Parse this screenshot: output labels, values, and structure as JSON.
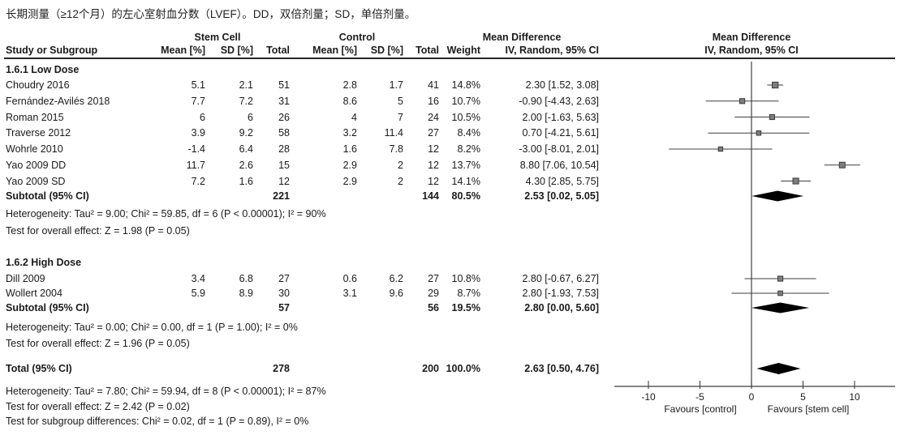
{
  "title": "长期测量（≥12个月）的左心室射血分数（LVEF）。DD，双倍剂量；SD，单倍剂量。",
  "header": {
    "stem_cell": "Stem Cell",
    "control": "Control",
    "mean_difference": "Mean Difference",
    "study": "Study or Subgroup",
    "mean": "Mean [%]",
    "sd": "SD [%]",
    "total": "Total",
    "weight": "Weight",
    "ci": "IV, Random, 95% CI",
    "plot_line1": "Mean Difference",
    "plot_line2": "IV, Random, 95% CI"
  },
  "colors": {
    "text": "#1a1a1a",
    "line": "#3f3f3f",
    "square_fill": "#7d7d7d",
    "square_stroke": "#3c3c3c",
    "diamond": "#000000"
  },
  "chart_data": {
    "type": "forest",
    "effect_measure": "Mean Difference",
    "model": "IV, Random, 95% CI",
    "x_ticks": [
      -10,
      -5,
      0,
      5,
      10
    ],
    "xlim": [
      -13,
      14
    ],
    "favours_left": "Favours [control]",
    "favours_right": "Favours [stem cell]",
    "groups": [
      {
        "label": "1.6.1 Low Dose",
        "studies": [
          {
            "name": "Choudry 2016",
            "sc_mean": 5.1,
            "sc_sd": 2.1,
            "sc_total": 51,
            "ct_mean": 2.8,
            "ct_sd": 1.7,
            "ct_total": 41,
            "weight": 14.8,
            "md": 2.3,
            "lo": 1.52,
            "hi": 3.08
          },
          {
            "name": "Fernández-Avilés 2018",
            "sc_mean": 7.7,
            "sc_sd": 7.2,
            "sc_total": 31,
            "ct_mean": 8.6,
            "ct_sd": 5,
            "ct_total": 16,
            "weight": 10.7,
            "md": -0.9,
            "lo": -4.43,
            "hi": 2.63
          },
          {
            "name": "Roman 2015",
            "sc_mean": 6,
            "sc_sd": 6,
            "sc_total": 26,
            "ct_mean": 4,
            "ct_sd": 7,
            "ct_total": 24,
            "weight": 10.5,
            "md": 2,
            "lo": -1.63,
            "hi": 5.63
          },
          {
            "name": "Traverse 2012",
            "sc_mean": 3.9,
            "sc_sd": 9.2,
            "sc_total": 58,
            "ct_mean": 3.2,
            "ct_sd": 11.4,
            "ct_total": 27,
            "weight": 8.4,
            "md": 0.7,
            "lo": -4.21,
            "hi": 5.61
          },
          {
            "name": "Wohrle 2010",
            "sc_mean": -1.4,
            "sc_sd": 6.4,
            "sc_total": 28,
            "ct_mean": 1.6,
            "ct_sd": 7.8,
            "ct_total": 12,
            "weight": 8.2,
            "md": -3,
            "lo": -8.01,
            "hi": 2.01
          },
          {
            "name": "Yao 2009 DD",
            "sc_mean": 11.7,
            "sc_sd": 2.6,
            "sc_total": 15,
            "ct_mean": 2.9,
            "ct_sd": 2,
            "ct_total": 12,
            "weight": 13.7,
            "md": 8.8,
            "lo": 7.06,
            "hi": 10.54
          },
          {
            "name": "Yao 2009 SD",
            "sc_mean": 7.2,
            "sc_sd": 1.6,
            "sc_total": 12,
            "ct_mean": 2.9,
            "ct_sd": 2,
            "ct_total": 12,
            "weight": 14.1,
            "md": 4.3,
            "lo": 2.85,
            "hi": 5.75
          }
        ],
        "subtotal": {
          "label": "Subtotal (95% CI)",
          "sc_total": 221,
          "ct_total": 144,
          "weight": 80.5,
          "md": 2.53,
          "lo": 0.02,
          "hi": 5.05
        },
        "heterogeneity": "Heterogeneity: Tau² = 9.00; Chi² = 59.85, df = 6 (P < 0.00001); I² = 90%",
        "overall_test": "Test for overall effect: Z = 1.98 (P = 0.05)"
      },
      {
        "label": "1.6.2 High Dose",
        "studies": [
          {
            "name": "Dill 2009",
            "sc_mean": 3.4,
            "sc_sd": 6.8,
            "sc_total": 27,
            "ct_mean": 0.6,
            "ct_sd": 6.2,
            "ct_total": 27,
            "weight": 10.8,
            "md": 2.8,
            "lo": -0.67,
            "hi": 6.27
          },
          {
            "name": "Wollert 2004",
            "sc_mean": 5.9,
            "sc_sd": 8.9,
            "sc_total": 30,
            "ct_mean": 3.1,
            "ct_sd": 9.6,
            "ct_total": 29,
            "weight": 8.7,
            "md": 2.8,
            "lo": -1.93,
            "hi": 7.53
          }
        ],
        "subtotal": {
          "label": "Subtotal (95% CI)",
          "sc_total": 57,
          "ct_total": 56,
          "weight": 19.5,
          "md": 2.8,
          "lo": 0,
          "hi": 5.6
        },
        "heterogeneity": "Heterogeneity: Tau² = 0.00; Chi² = 0.00, df = 1 (P = 1.00); I² = 0%",
        "overall_test": "Test for overall effect: Z = 1.96 (P = 0.05)"
      }
    ],
    "total": {
      "label": "Total (95% CI)",
      "sc_total": 278,
      "ct_total": 200,
      "weight": 100.0,
      "md": 2.63,
      "lo": 0.5,
      "hi": 4.76
    },
    "total_heterogeneity": "Heterogeneity: Tau² = 7.80; Chi² = 59.94, df = 8 (P < 0.00001); I² = 87%",
    "total_overall_test": "Test for overall effect: Z = 2.42 (P = 0.02)",
    "subgroup_test": "Test for subgroup differences: Chi² = 0.02, df = 1 (P = 0.89), I² = 0%"
  }
}
